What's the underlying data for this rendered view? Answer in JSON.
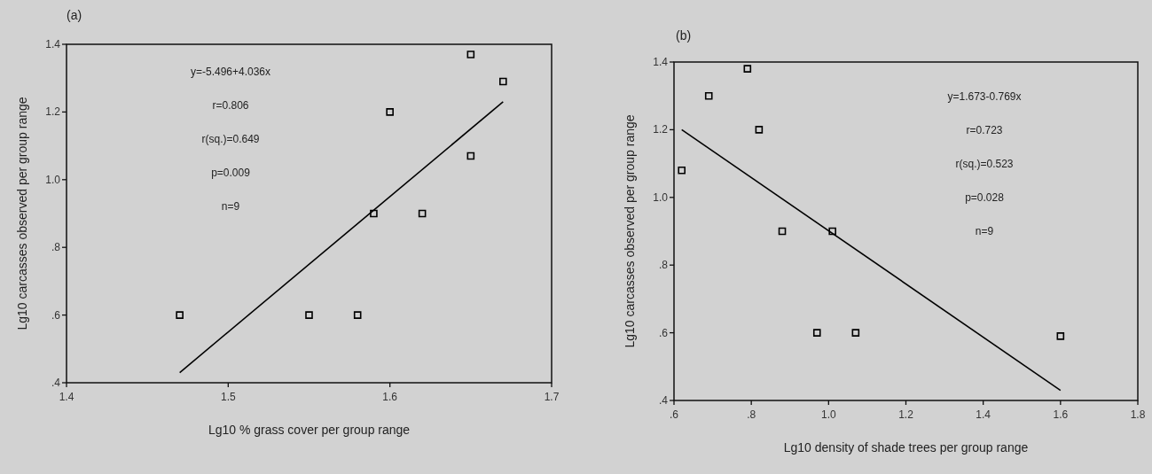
{
  "chart_data": [
    {
      "type": "scatter",
      "title": "(a)",
      "xlabel": "Lg10 % grass cover per group range",
      "ylabel": "Lg10 carcasses observed per group range",
      "xlim": [
        1.4,
        1.7
      ],
      "xticks": [
        1.4,
        1.5,
        1.6,
        1.7
      ],
      "ylim": [
        0.4,
        1.4
      ],
      "yticks": [
        {
          "value": 0.4,
          "label": ".4"
        },
        {
          "value": 0.6,
          "label": ".6"
        },
        {
          "value": 0.8,
          "label": ".8"
        },
        {
          "value": 1.0,
          "label": "1.0"
        },
        {
          "value": 1.2,
          "label": "1.2"
        },
        {
          "value": 1.4,
          "label": "1.4"
        }
      ],
      "grid": false,
      "annotations": [
        "y=-5.496+4.036x",
        "r=0.806",
        "r(sq.)=0.649",
        "p=0.009",
        "n=9"
      ],
      "series": [
        {
          "type": "scatter",
          "color": "#000000",
          "marker": "square",
          "x": [
            1.47,
            1.55,
            1.58,
            1.59,
            1.6,
            1.62,
            1.65,
            1.65,
            1.67
          ],
          "values": [
            0.6,
            0.6,
            0.6,
            0.9,
            1.2,
            0.9,
            1.07,
            1.37,
            1.29
          ]
        },
        {
          "type": "line",
          "color": "#000000",
          "marker": "none",
          "line_style": "solid",
          "x": [
            1.47,
            1.67
          ],
          "values": [
            0.43,
            1.23
          ]
        }
      ]
    },
    {
      "type": "scatter",
      "title": "(b)",
      "xlabel": "Lg10 density of shade trees per group range",
      "ylabel": "Lg10 carcasses observed per group range",
      "xlim": [
        0.6,
        1.8
      ],
      "xticks": [
        {
          "value": 0.6,
          "label": ".6"
        },
        {
          "value": 0.8,
          "label": ".8"
        },
        {
          "value": 1.0,
          "label": "1.0"
        },
        {
          "value": 1.2,
          "label": "1.2"
        },
        {
          "value": 1.4,
          "label": "1.4"
        },
        {
          "value": 1.6,
          "label": "1.6"
        },
        {
          "value": 1.8,
          "label": "1.8"
        }
      ],
      "ylim": [
        0.4,
        1.4
      ],
      "yticks": [
        {
          "value": 0.4,
          "label": ".4"
        },
        {
          "value": 0.6,
          "label": ".6"
        },
        {
          "value": 0.8,
          "label": ".8"
        },
        {
          "value": 1.0,
          "label": "1.0"
        },
        {
          "value": 1.2,
          "label": "1.2"
        },
        {
          "value": 1.4,
          "label": "1.4"
        }
      ],
      "grid": false,
      "annotations": [
        "y=1.673-0.769x",
        "r=0.723",
        "r(sq.)=0.523",
        "p=0.028",
        "n=9"
      ],
      "series": [
        {
          "type": "scatter",
          "color": "#000000",
          "marker": "square",
          "x": [
            0.62,
            0.69,
            0.79,
            0.82,
            0.88,
            0.97,
            1.01,
            1.07,
            1.6
          ],
          "values": [
            1.08,
            1.3,
            1.38,
            1.2,
            0.9,
            0.6,
            0.9,
            0.6,
            0.59
          ]
        },
        {
          "type": "line",
          "color": "#000000",
          "marker": "none",
          "line_style": "solid",
          "x": [
            0.62,
            1.6
          ],
          "values": [
            1.2,
            0.43
          ]
        }
      ]
    }
  ]
}
